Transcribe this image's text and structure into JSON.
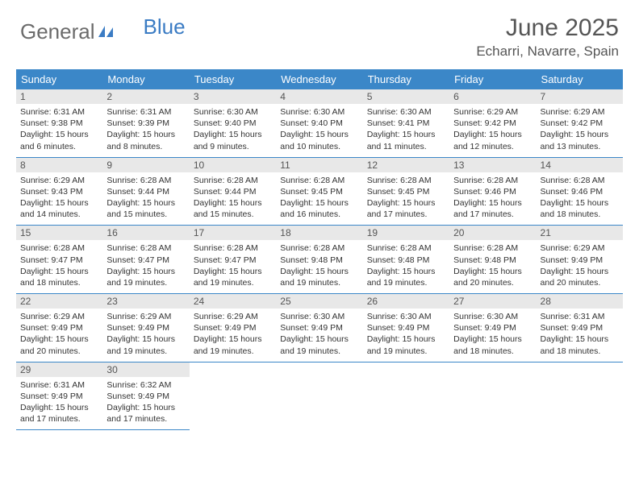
{
  "logo": {
    "text1": "General",
    "text2": "Blue"
  },
  "title": "June 2025",
  "location": "Echarri, Navarre, Spain",
  "weekdays": [
    "Sunday",
    "Monday",
    "Tuesday",
    "Wednesday",
    "Thursday",
    "Friday",
    "Saturday"
  ],
  "colors": {
    "header_bar": "#3b87c8",
    "daynum_bg": "#e8e8e8",
    "row_border": "#3b87c8",
    "logo_gray": "#6b6b6b",
    "logo_blue": "#3b7cc4"
  },
  "days": [
    {
      "n": "1",
      "sunrise": "6:31 AM",
      "sunset": "9:38 PM",
      "daylight": "15 hours and 6 minutes."
    },
    {
      "n": "2",
      "sunrise": "6:31 AM",
      "sunset": "9:39 PM",
      "daylight": "15 hours and 8 minutes."
    },
    {
      "n": "3",
      "sunrise": "6:30 AM",
      "sunset": "9:40 PM",
      "daylight": "15 hours and 9 minutes."
    },
    {
      "n": "4",
      "sunrise": "6:30 AM",
      "sunset": "9:40 PM",
      "daylight": "15 hours and 10 minutes."
    },
    {
      "n": "5",
      "sunrise": "6:30 AM",
      "sunset": "9:41 PM",
      "daylight": "15 hours and 11 minutes."
    },
    {
      "n": "6",
      "sunrise": "6:29 AM",
      "sunset": "9:42 PM",
      "daylight": "15 hours and 12 minutes."
    },
    {
      "n": "7",
      "sunrise": "6:29 AM",
      "sunset": "9:42 PM",
      "daylight": "15 hours and 13 minutes."
    },
    {
      "n": "8",
      "sunrise": "6:29 AM",
      "sunset": "9:43 PM",
      "daylight": "15 hours and 14 minutes."
    },
    {
      "n": "9",
      "sunrise": "6:28 AM",
      "sunset": "9:44 PM",
      "daylight": "15 hours and 15 minutes."
    },
    {
      "n": "10",
      "sunrise": "6:28 AM",
      "sunset": "9:44 PM",
      "daylight": "15 hours and 15 minutes."
    },
    {
      "n": "11",
      "sunrise": "6:28 AM",
      "sunset": "9:45 PM",
      "daylight": "15 hours and 16 minutes."
    },
    {
      "n": "12",
      "sunrise": "6:28 AM",
      "sunset": "9:45 PM",
      "daylight": "15 hours and 17 minutes."
    },
    {
      "n": "13",
      "sunrise": "6:28 AM",
      "sunset": "9:46 PM",
      "daylight": "15 hours and 17 minutes."
    },
    {
      "n": "14",
      "sunrise": "6:28 AM",
      "sunset": "9:46 PM",
      "daylight": "15 hours and 18 minutes."
    },
    {
      "n": "15",
      "sunrise": "6:28 AM",
      "sunset": "9:47 PM",
      "daylight": "15 hours and 18 minutes."
    },
    {
      "n": "16",
      "sunrise": "6:28 AM",
      "sunset": "9:47 PM",
      "daylight": "15 hours and 19 minutes."
    },
    {
      "n": "17",
      "sunrise": "6:28 AM",
      "sunset": "9:47 PM",
      "daylight": "15 hours and 19 minutes."
    },
    {
      "n": "18",
      "sunrise": "6:28 AM",
      "sunset": "9:48 PM",
      "daylight": "15 hours and 19 minutes."
    },
    {
      "n": "19",
      "sunrise": "6:28 AM",
      "sunset": "9:48 PM",
      "daylight": "15 hours and 19 minutes."
    },
    {
      "n": "20",
      "sunrise": "6:28 AM",
      "sunset": "9:48 PM",
      "daylight": "15 hours and 20 minutes."
    },
    {
      "n": "21",
      "sunrise": "6:29 AM",
      "sunset": "9:49 PM",
      "daylight": "15 hours and 20 minutes."
    },
    {
      "n": "22",
      "sunrise": "6:29 AM",
      "sunset": "9:49 PM",
      "daylight": "15 hours and 20 minutes."
    },
    {
      "n": "23",
      "sunrise": "6:29 AM",
      "sunset": "9:49 PM",
      "daylight": "15 hours and 19 minutes."
    },
    {
      "n": "24",
      "sunrise": "6:29 AM",
      "sunset": "9:49 PM",
      "daylight": "15 hours and 19 minutes."
    },
    {
      "n": "25",
      "sunrise": "6:30 AM",
      "sunset": "9:49 PM",
      "daylight": "15 hours and 19 minutes."
    },
    {
      "n": "26",
      "sunrise": "6:30 AM",
      "sunset": "9:49 PM",
      "daylight": "15 hours and 19 minutes."
    },
    {
      "n": "27",
      "sunrise": "6:30 AM",
      "sunset": "9:49 PM",
      "daylight": "15 hours and 18 minutes."
    },
    {
      "n": "28",
      "sunrise": "6:31 AM",
      "sunset": "9:49 PM",
      "daylight": "15 hours and 18 minutes."
    },
    {
      "n": "29",
      "sunrise": "6:31 AM",
      "sunset": "9:49 PM",
      "daylight": "15 hours and 17 minutes."
    },
    {
      "n": "30",
      "sunrise": "6:32 AM",
      "sunset": "9:49 PM",
      "daylight": "15 hours and 17 minutes."
    }
  ],
  "labels": {
    "sunrise": "Sunrise: ",
    "sunset": "Sunset: ",
    "daylight": "Daylight: "
  }
}
